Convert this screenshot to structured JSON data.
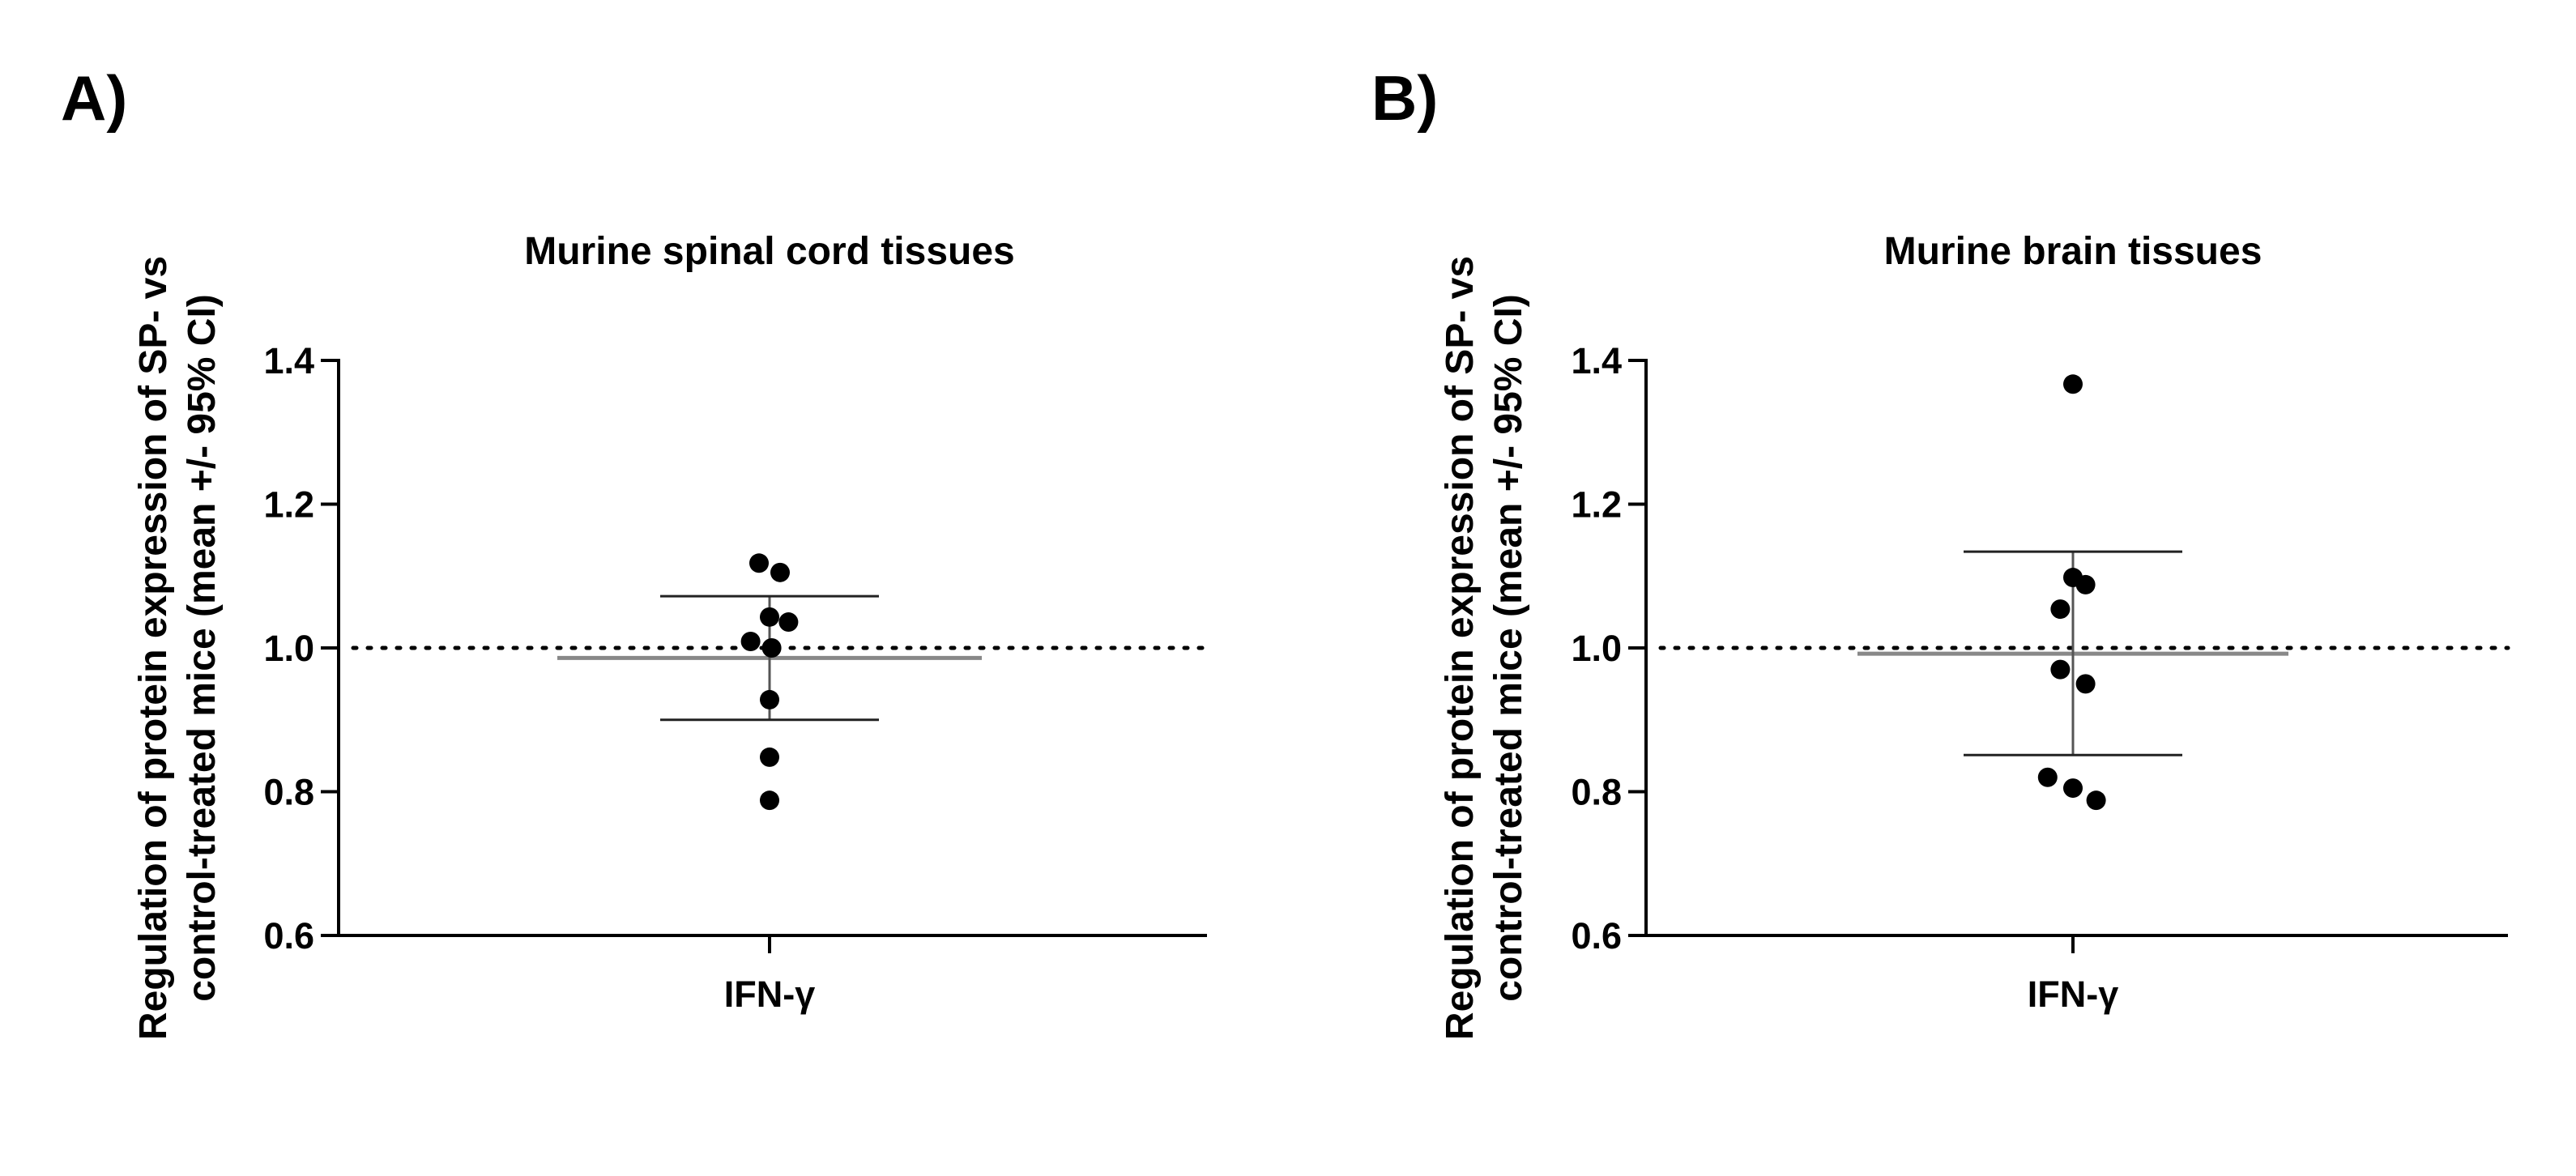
{
  "chart_data": [
    {
      "type": "scatter",
      "panel_label": "A)",
      "title": "Murine spinal cord tissues",
      "ylabel_lines": [
        "Regulation of protein expression of SP- vs",
        "control-treated mice (mean +/- 95% CI)"
      ],
      "xlabel": "",
      "categories": [
        "IFN-γ"
      ],
      "ylim": [
        0.6,
        1.4
      ],
      "yticks": [
        0.6,
        0.8,
        1.0,
        1.2,
        1.4
      ],
      "ytick_labels": [
        "0.6",
        "0.8",
        "1.0",
        "1.2",
        "1.4"
      ],
      "reference_line": {
        "y": 1.0,
        "style": "dotted"
      },
      "summary": {
        "mean": 0.986,
        "ci_low": 0.9,
        "ci_high": 1.072
      },
      "points": [
        {
          "x_offset": -0.1,
          "y": 1.118
        },
        {
          "x_offset": 0.1,
          "y": 1.105
        },
        {
          "x_offset": 0.0,
          "y": 1.043
        },
        {
          "x_offset": 0.18,
          "y": 1.036
        },
        {
          "x_offset": -0.18,
          "y": 1.009
        },
        {
          "x_offset": 0.02,
          "y": 1.0
        },
        {
          "x_offset": 0.0,
          "y": 0.928
        },
        {
          "x_offset": 0.0,
          "y": 0.848
        },
        {
          "x_offset": 0.0,
          "y": 0.788
        }
      ]
    },
    {
      "type": "scatter",
      "panel_label": "B)",
      "title": "Murine brain tissues",
      "ylabel_lines": [
        "Regulation of protein expression of SP- vs",
        "control-treated mice (mean +/- 95% CI)"
      ],
      "xlabel": "",
      "categories": [
        "IFN-γ"
      ],
      "ylim": [
        0.6,
        1.4
      ],
      "yticks": [
        0.6,
        0.8,
        1.0,
        1.2,
        1.4
      ],
      "ytick_labels": [
        "0.6",
        "0.8",
        "1.0",
        "1.2",
        "1.4"
      ],
      "reference_line": {
        "y": 1.0,
        "style": "dotted"
      },
      "summary": {
        "mean": 0.992,
        "ci_low": 0.851,
        "ci_high": 1.134
      },
      "points": [
        {
          "x_offset": 0.0,
          "y": 1.367
        },
        {
          "x_offset": 0.0,
          "y": 1.098
        },
        {
          "x_offset": 0.12,
          "y": 1.088
        },
        {
          "x_offset": -0.12,
          "y": 1.054
        },
        {
          "x_offset": -0.12,
          "y": 0.97
        },
        {
          "x_offset": 0.12,
          "y": 0.95
        },
        {
          "x_offset": -0.24,
          "y": 0.82
        },
        {
          "x_offset": 0.0,
          "y": 0.805
        },
        {
          "x_offset": 0.22,
          "y": 0.788
        }
      ]
    }
  ]
}
